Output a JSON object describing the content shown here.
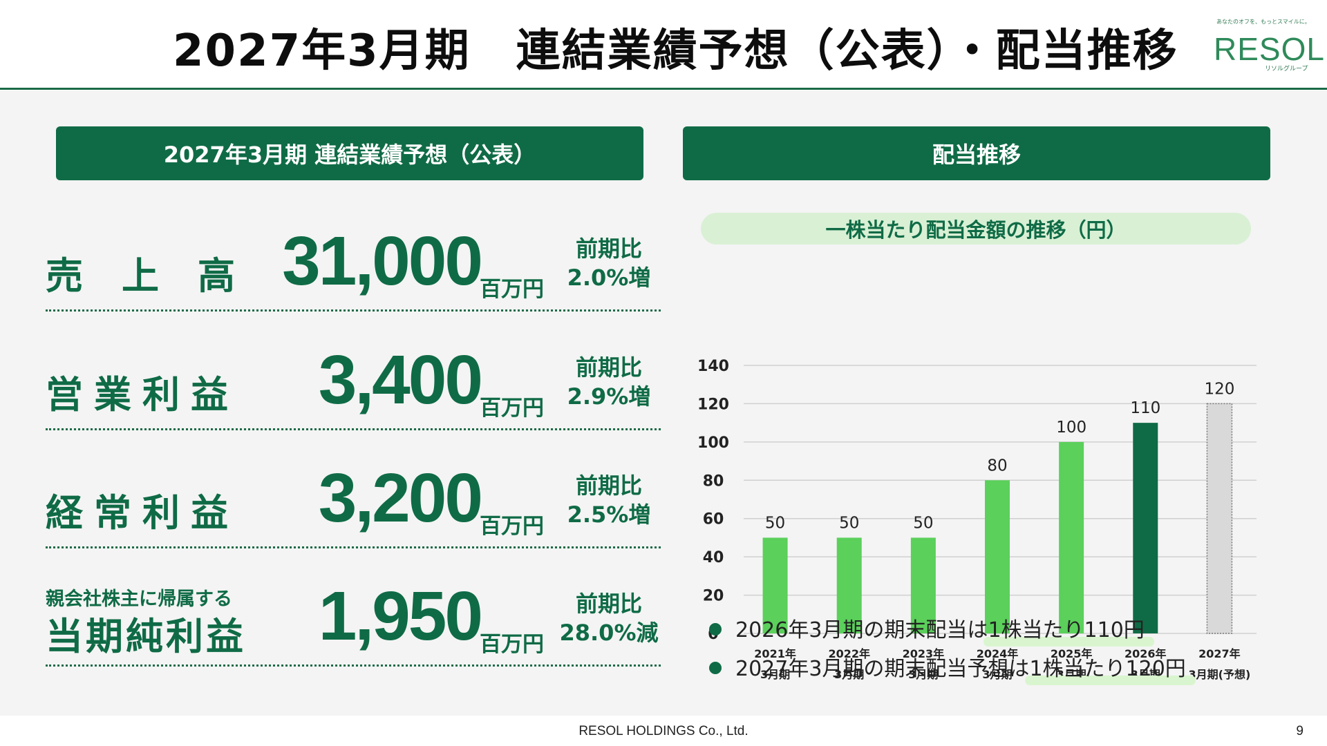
{
  "header": {
    "title": "2027年3月期　連結業績予想（公表）・配当推移",
    "logo": {
      "tagline": "あなたのオフを、もっとスマイルに。",
      "name": "RESOL",
      "sub": "リソルグループ"
    }
  },
  "left_panel": {
    "title": "2027年3月期 連結業績予想（公表）",
    "metrics": [
      {
        "label": "売上高",
        "sublabel": "",
        "value": "31,000",
        "unit": "百万円",
        "comp_label": "前期比",
        "comp_value": "2.0%増"
      },
      {
        "label": "営業利益",
        "sublabel": "",
        "value": "3,400",
        "unit": "百万円",
        "comp_label": "前期比",
        "comp_value": "2.9%増"
      },
      {
        "label": "経常利益",
        "sublabel": "",
        "value": "3,200",
        "unit": "百万円",
        "comp_label": "前期比",
        "comp_value": "2.5%増"
      },
      {
        "label": "当期純利益",
        "sublabel": "親会社株主に帰属する",
        "value": "1,950",
        "unit": "百万円",
        "comp_label": "前期比",
        "comp_value": "28.0%減"
      }
    ]
  },
  "right_panel": {
    "title": "配当推移",
    "chart_title": "一株当たり配当金額の推移（円）",
    "notes": [
      {
        "prefix": "2026年3月期の期末配当は",
        "highlight": "1株当たり110円"
      },
      {
        "prefix": "2027年3月期の期末配当予想は",
        "highlight": "1株当たり120円"
      }
    ]
  },
  "chart_data": {
    "type": "bar",
    "title": "一株当たり配当金額の推移（円）",
    "categories": [
      [
        "2021年",
        "3月期"
      ],
      [
        "2022年",
        "3月期"
      ],
      [
        "2023年",
        "3月期"
      ],
      [
        "2024年",
        "3月期"
      ],
      [
        "2025年",
        "3月期"
      ],
      [
        "2026年",
        "3月期"
      ],
      [
        "2027年",
        "3月期(予想)"
      ]
    ],
    "values": [
      50,
      50,
      50,
      80,
      100,
      110,
      120
    ],
    "bar_styles": [
      "light",
      "light",
      "light",
      "light",
      "light",
      "dark",
      "forecast"
    ],
    "colors": {
      "light": "#5bd05b",
      "dark": "#0f6b46",
      "forecast": "#d9d9d9",
      "grid": "#d0d0d0",
      "text": "#222222"
    },
    "ylim": [
      0,
      140
    ],
    "yticks": [
      0,
      20,
      40,
      60,
      80,
      100,
      120,
      140
    ],
    "grid": true,
    "data_labels": true
  },
  "footer": {
    "company": "RESOL HOLDINGS Co., Ltd.",
    "page": "9"
  }
}
